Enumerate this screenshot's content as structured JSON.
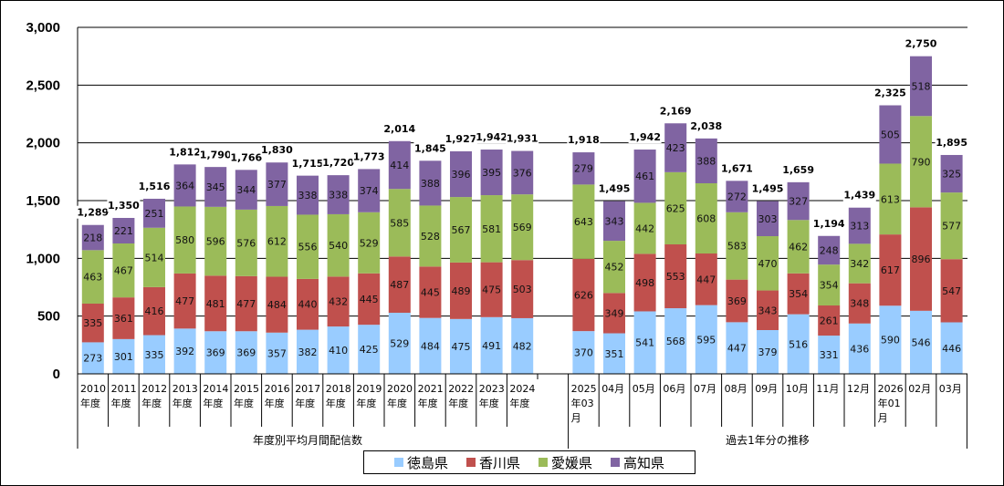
{
  "chart_data": {
    "type": "bar",
    "stacked": true,
    "title": "",
    "xlabel": "",
    "ylabel": "",
    "ylim": [
      0,
      3000
    ],
    "yticks": [
      0,
      500,
      1000,
      1500,
      2000,
      2500,
      3000
    ],
    "ytick_labels": [
      "0",
      "500",
      "1,000",
      "1,500",
      "2,000",
      "2,500",
      "3,000"
    ],
    "grid": true,
    "legend_position": "bottom",
    "groups": [
      {
        "label": "年度別平均月間配信数",
        "start": 0,
        "count": 15
      },
      {
        "label": "過去1年分の推移",
        "start": 15,
        "count": 13
      }
    ],
    "categories": [
      "2010年度",
      "2011年度",
      "2012年度",
      "2013年度",
      "2014年度",
      "2015年度",
      "2016年度",
      "2017年度",
      "2018年度",
      "2019年度",
      "2020年度",
      "2021年度",
      "2022年度",
      "2023年度",
      "2024年度",
      "2025年03月",
      "04月",
      "05月",
      "06月",
      "07月",
      "08月",
      "09月",
      "10月",
      "11月",
      "12月",
      "2026年01月",
      "02月",
      "03月"
    ],
    "category_lines": [
      [
        "2010",
        "年度"
      ],
      [
        "2011",
        "年度"
      ],
      [
        "2012",
        "年度"
      ],
      [
        "2013",
        "年度"
      ],
      [
        "2014",
        "年度"
      ],
      [
        "2015",
        "年度"
      ],
      [
        "2016",
        "年度"
      ],
      [
        "2017",
        "年度"
      ],
      [
        "2018",
        "年度"
      ],
      [
        "2019",
        "年度"
      ],
      [
        "2020",
        "年度"
      ],
      [
        "2021",
        "年度"
      ],
      [
        "2022",
        "年度"
      ],
      [
        "2023",
        "年度"
      ],
      [
        "2024",
        "年度"
      ],
      [
        "2025",
        "年03",
        "月"
      ],
      [
        "04月"
      ],
      [
        "05月"
      ],
      [
        "06月"
      ],
      [
        "07月"
      ],
      [
        "08月"
      ],
      [
        "09月"
      ],
      [
        "10月"
      ],
      [
        "11月"
      ],
      [
        "12月"
      ],
      [
        "2026",
        "年01",
        "月"
      ],
      [
        "02月"
      ],
      [
        "03月"
      ]
    ],
    "series": [
      {
        "name": "徳島県",
        "color": "#99ccff",
        "values": [
          273,
          301,
          335,
          392,
          369,
          369,
          357,
          382,
          410,
          425,
          529,
          484,
          475,
          491,
          482,
          370,
          351,
          541,
          568,
          595,
          447,
          379,
          516,
          331,
          436,
          590,
          546,
          446
        ]
      },
      {
        "name": "香川県",
        "color": "#c0504d",
        "values": [
          335,
          361,
          416,
          477,
          481,
          477,
          484,
          440,
          432,
          445,
          487,
          445,
          489,
          475,
          503,
          626,
          349,
          498,
          553,
          447,
          369,
          343,
          354,
          261,
          348,
          617,
          896,
          547
        ]
      },
      {
        "name": "愛媛県",
        "color": "#9bbb59",
        "values": [
          463,
          467,
          514,
          580,
          596,
          576,
          612,
          556,
          540,
          529,
          585,
          528,
          567,
          581,
          569,
          643,
          452,
          442,
          625,
          608,
          583,
          470,
          462,
          354,
          342,
          613,
          790,
          577
        ]
      },
      {
        "name": "高知県",
        "color": "#8064a2",
        "values": [
          218,
          221,
          251,
          364,
          345,
          344,
          377,
          338,
          338,
          374,
          414,
          388,
          396,
          395,
          376,
          279,
          343,
          461,
          423,
          388,
          272,
          303,
          327,
          248,
          313,
          505,
          518,
          325
        ]
      }
    ],
    "totals": [
      1289,
      1350,
      1516,
      1812,
      1790,
      1766,
      1830,
      1715,
      1720,
      1773,
      2014,
      1845,
      1927,
      1942,
      1931,
      1918,
      1495,
      1942,
      2169,
      2038,
      1671,
      1495,
      1659,
      1194,
      1439,
      2325,
      2750,
      1895
    ],
    "total_labels": [
      "1,289",
      "1,350",
      "1,516",
      "1,812",
      "1,790",
      "1,766",
      "1,830",
      "1,715",
      "1,720",
      "1,773",
      "2,014",
      "1,845",
      "1,927",
      "1,942",
      "1,931",
      "1,918",
      "1,495",
      "1,942",
      "2,169",
      "2,038",
      "1,671",
      "1,495",
      "1,659",
      "1,194",
      "1,439",
      "2,325",
      "2,750",
      "1,895"
    ]
  },
  "legend": {
    "items": [
      {
        "label": "徳島県",
        "color": "#99ccff"
      },
      {
        "label": "香川県",
        "color": "#c0504d"
      },
      {
        "label": "愛媛県",
        "color": "#9bbb59"
      },
      {
        "label": "高知県",
        "color": "#8064a2"
      }
    ]
  }
}
